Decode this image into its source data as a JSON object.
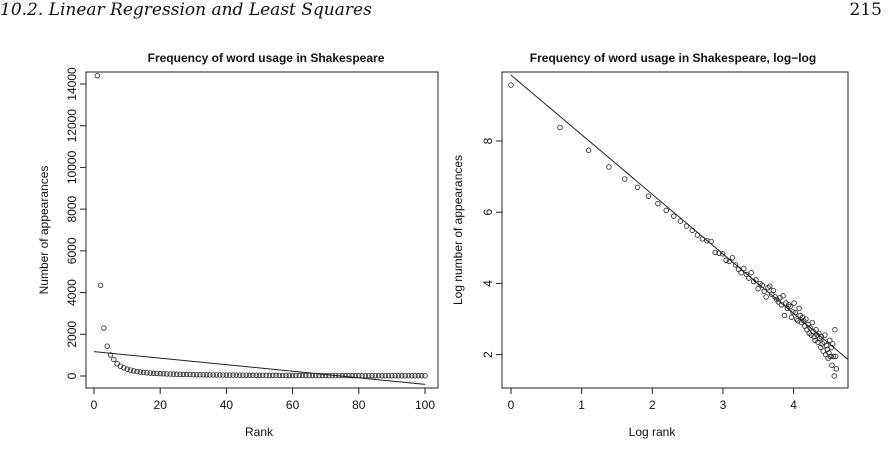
{
  "header": {
    "section": "10.2.  Linear Regression and Least Squares",
    "page_number": "215"
  },
  "chart_data": [
    {
      "type": "scatter",
      "title": "Frequency of word usage in Shakespeare",
      "xlabel": "Rank",
      "ylabel": "Number of appearances",
      "xlim": [
        0,
        100
      ],
      "ylim": [
        0,
        14000
      ],
      "xticks": [
        "0",
        "20",
        "40",
        "60",
        "80",
        "100"
      ],
      "yticks": [
        "0",
        "2000",
        "4000",
        "6000",
        "8000",
        "10000",
        "12000",
        "14000"
      ],
      "x": [
        1,
        2,
        3,
        4,
        5,
        6,
        7,
        8,
        9,
        10,
        11,
        12,
        13,
        14,
        15,
        16,
        17,
        18,
        19,
        20,
        21,
        22,
        23,
        24,
        25,
        26,
        27,
        28,
        29,
        30,
        31,
        32,
        33,
        34,
        35,
        36,
        37,
        38,
        39,
        40,
        41,
        42,
        43,
        44,
        45,
        46,
        47,
        48,
        49,
        50,
        51,
        52,
        53,
        54,
        55,
        56,
        57,
        58,
        59,
        60,
        61,
        62,
        63,
        64,
        65,
        66,
        67,
        68,
        69,
        70,
        71,
        72,
        73,
        74,
        75,
        76,
        77,
        78,
        79,
        80,
        81,
        82,
        83,
        84,
        85,
        86,
        87,
        88,
        89,
        90,
        91,
        92,
        93,
        94,
        95,
        96,
        97,
        98,
        99,
        100
      ],
      "y": [
        14400,
        4350,
        2300,
        1430,
        1010,
        790,
        590,
        470,
        390,
        330,
        285,
        245,
        215,
        190,
        170,
        155,
        142,
        132,
        123,
        114,
        107,
        100,
        95,
        90,
        85,
        81,
        77,
        73,
        70,
        67,
        64,
        61,
        59,
        57,
        55,
        53,
        51,
        49,
        47,
        46,
        44,
        43,
        42,
        40,
        39,
        38,
        37,
        36,
        35,
        34,
        33,
        32,
        31,
        30,
        30,
        29,
        28,
        28,
        27,
        26,
        26,
        25,
        25,
        24,
        24,
        23,
        23,
        22,
        22,
        21,
        21,
        20,
        20,
        20,
        19,
        19,
        19,
        18,
        18,
        18,
        17,
        17,
        17,
        16,
        16,
        16,
        16,
        15,
        15,
        15,
        15,
        14,
        14,
        14,
        14,
        13,
        13,
        13,
        13,
        13
      ],
      "fit_line": {
        "x": [
          0,
          100
        ],
        "y": [
          1170,
          -400
        ]
      },
      "grid": false
    },
    {
      "type": "scatter",
      "title": "Frequency of word usage in Shakespeare, log−log",
      "xlabel": "Log rank",
      "ylabel": "Log number of appearances",
      "xlim": [
        0,
        4.6
      ],
      "ylim": [
        1.4,
        9.6
      ],
      "xticks": [
        "0",
        "1",
        "2",
        "3",
        "4"
      ],
      "yticks": [
        "2",
        "4",
        "6",
        "8"
      ],
      "x": [
        0.0,
        0.693,
        1.099,
        1.386,
        1.609,
        1.792,
        1.946,
        2.079,
        2.197,
        2.303,
        2.398,
        2.485,
        2.565,
        2.639,
        2.708,
        2.773,
        2.833,
        2.89,
        2.944,
        2.996,
        3.045,
        3.091,
        3.135,
        3.178,
        3.219,
        3.258,
        3.296,
        3.332,
        3.367,
        3.401,
        3.434,
        3.466,
        3.497,
        3.526,
        3.555,
        3.584,
        3.611,
        3.638,
        3.664,
        3.689,
        3.714,
        3.738,
        3.761,
        3.784,
        3.807,
        3.829,
        3.85,
        3.871,
        3.892,
        3.912,
        3.932,
        3.951,
        3.97,
        3.989,
        4.007,
        4.025,
        4.043,
        4.06,
        4.078,
        4.094,
        4.111,
        4.127,
        4.143,
        4.159,
        4.174,
        4.19,
        4.205,
        4.22,
        4.234,
        4.248,
        4.263,
        4.277,
        4.29,
        4.304,
        4.317,
        4.331,
        4.344,
        4.357,
        4.369,
        4.382,
        4.394,
        4.407,
        4.419,
        4.431,
        4.443,
        4.454,
        4.466,
        4.477,
        4.489,
        4.5,
        4.511,
        4.522,
        4.533,
        4.543,
        4.554,
        4.564,
        4.575,
        4.585,
        4.595,
        4.605
      ],
      "y": [
        9.57,
        8.38,
        7.74,
        7.27,
        6.93,
        6.7,
        6.45,
        6.24,
        6.05,
        5.89,
        5.75,
        5.61,
        5.49,
        5.36,
        5.25,
        5.2,
        5.18,
        4.87,
        4.85,
        4.83,
        4.65,
        4.62,
        4.72,
        4.52,
        4.4,
        4.3,
        4.42,
        4.25,
        4.15,
        4.3,
        4.05,
        4.1,
        3.85,
        4.0,
        3.95,
        3.78,
        3.62,
        3.88,
        3.92,
        3.7,
        3.8,
        3.62,
        3.55,
        3.48,
        3.6,
        3.4,
        3.65,
        3.1,
        3.45,
        3.3,
        3.4,
        3.35,
        3.05,
        3.2,
        3.45,
        3.18,
        3.0,
        2.95,
        3.3,
        3.1,
        2.9,
        3.05,
        2.95,
        2.8,
        3.0,
        2.7,
        2.85,
        2.6,
        2.75,
        2.55,
        2.9,
        2.65,
        2.5,
        2.4,
        2.7,
        2.55,
        2.35,
        2.6,
        2.45,
        2.2,
        2.5,
        2.3,
        2.1,
        2.35,
        2.55,
        2.0,
        2.25,
        2.15,
        1.9,
        2.05,
        2.4,
        1.95,
        2.2,
        1.7,
        2.3,
        1.95,
        1.4,
        2.7,
        1.95,
        1.6
      ],
      "fit_line": {
        "x": [
          0,
          4.82
        ],
        "y": [
          9.85,
          1.78
        ]
      },
      "grid": false
    }
  ]
}
